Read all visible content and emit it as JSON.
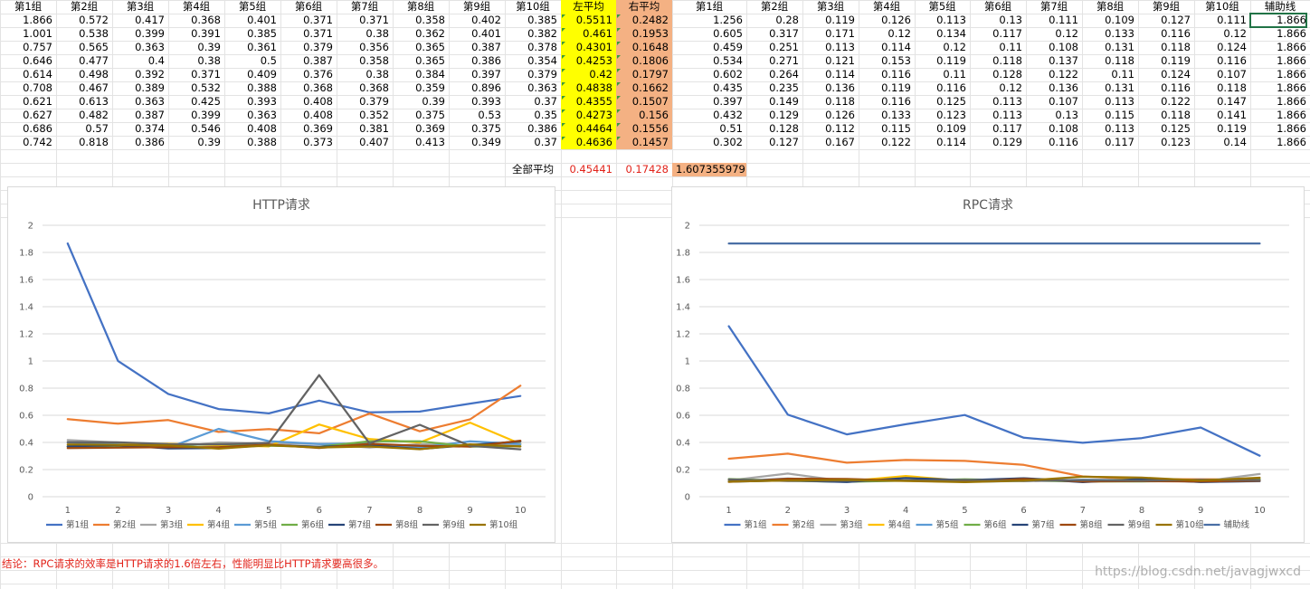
{
  "headers_left": [
    "第1组",
    "第2组",
    "第3组",
    "第4组",
    "第5组",
    "第6组",
    "第7组",
    "第8组",
    "第9组",
    "第10组",
    "左平均",
    "右平均"
  ],
  "headers_right": [
    "第1组",
    "第2组",
    "第3组",
    "第4组",
    "第5组",
    "第6组",
    "第7组",
    "第8组",
    "第9组",
    "第10组",
    "辅助线"
  ],
  "rows_left": [
    [
      "1.866",
      "0.572",
      "0.417",
      "0.368",
      "0.401",
      "0.371",
      "0.371",
      "0.358",
      "0.402",
      "0.385",
      "0.5511",
      "0.2482"
    ],
    [
      "1.001",
      "0.538",
      "0.399",
      "0.391",
      "0.385",
      "0.371",
      "0.38",
      "0.362",
      "0.401",
      "0.382",
      "0.461",
      "0.1953"
    ],
    [
      "0.757",
      "0.565",
      "0.363",
      "0.39",
      "0.361",
      "0.379",
      "0.356",
      "0.365",
      "0.387",
      "0.378",
      "0.4301",
      "0.1648"
    ],
    [
      "0.646",
      "0.477",
      "0.4",
      "0.38",
      "0.5",
      "0.387",
      "0.358",
      "0.365",
      "0.386",
      "0.354",
      "0.4253",
      "0.1806"
    ],
    [
      "0.614",
      "0.498",
      "0.392",
      "0.371",
      "0.409",
      "0.376",
      "0.38",
      "0.384",
      "0.397",
      "0.379",
      "0.42",
      "0.1797"
    ],
    [
      "0.708",
      "0.467",
      "0.389",
      "0.532",
      "0.388",
      "0.368",
      "0.368",
      "0.359",
      "0.896",
      "0.363",
      "0.4838",
      "0.1662"
    ],
    [
      "0.621",
      "0.613",
      "0.363",
      "0.425",
      "0.393",
      "0.408",
      "0.379",
      "0.39",
      "0.393",
      "0.37",
      "0.4355",
      "0.1507"
    ],
    [
      "0.627",
      "0.482",
      "0.387",
      "0.399",
      "0.363",
      "0.408",
      "0.352",
      "0.375",
      "0.53",
      "0.35",
      "0.4273",
      "0.156"
    ],
    [
      "0.686",
      "0.57",
      "0.374",
      "0.546",
      "0.408",
      "0.369",
      "0.381",
      "0.369",
      "0.375",
      "0.386",
      "0.4464",
      "0.1556"
    ],
    [
      "0.742",
      "0.818",
      "0.386",
      "0.39",
      "0.388",
      "0.373",
      "0.407",
      "0.413",
      "0.349",
      "0.37",
      "0.4636",
      "0.1457"
    ]
  ],
  "rows_right": [
    [
      "1.256",
      "0.28",
      "0.119",
      "0.126",
      "0.113",
      "0.13",
      "0.111",
      "0.109",
      "0.127",
      "0.111",
      "1.866"
    ],
    [
      "0.605",
      "0.317",
      "0.171",
      "0.12",
      "0.134",
      "0.117",
      "0.12",
      "0.133",
      "0.116",
      "0.12",
      "1.866"
    ],
    [
      "0.459",
      "0.251",
      "0.113",
      "0.114",
      "0.12",
      "0.11",
      "0.108",
      "0.131",
      "0.118",
      "0.124",
      "1.866"
    ],
    [
      "0.534",
      "0.271",
      "0.121",
      "0.153",
      "0.119",
      "0.118",
      "0.137",
      "0.118",
      "0.119",
      "0.116",
      "1.866"
    ],
    [
      "0.602",
      "0.264",
      "0.114",
      "0.116",
      "0.11",
      "0.128",
      "0.122",
      "0.11",
      "0.124",
      "0.107",
      "1.866"
    ],
    [
      "0.435",
      "0.235",
      "0.136",
      "0.119",
      "0.116",
      "0.12",
      "0.136",
      "0.131",
      "0.116",
      "0.118",
      "1.866"
    ],
    [
      "0.397",
      "0.149",
      "0.118",
      "0.116",
      "0.125",
      "0.113",
      "0.107",
      "0.113",
      "0.122",
      "0.147",
      "1.866"
    ],
    [
      "0.432",
      "0.129",
      "0.126",
      "0.133",
      "0.123",
      "0.113",
      "0.13",
      "0.115",
      "0.118",
      "0.141",
      "1.866"
    ],
    [
      "0.51",
      "0.128",
      "0.112",
      "0.115",
      "0.109",
      "0.117",
      "0.108",
      "0.113",
      "0.125",
      "0.119",
      "1.866"
    ],
    [
      "0.302",
      "0.127",
      "0.167",
      "0.122",
      "0.114",
      "0.129",
      "0.116",
      "0.117",
      "0.123",
      "0.14",
      "1.866"
    ]
  ],
  "summary": {
    "label": "全部平均",
    "left_avg": "0.45441",
    "right_avg": "0.17428",
    "ratio": "1.607355979"
  },
  "conclusion": "结论：RPC请求的效率是HTTP请求的1.6倍左右，性能明显比HTTP请求要高很多。",
  "watermark": "https://blog.csdn.net/javagjwxcd",
  "colors": {
    "highlight_yellow": "#ffff00",
    "highlight_orange": "#f4b183",
    "text_red": "#e2231a",
    "selection": "#217346"
  },
  "chart_data": [
    {
      "type": "line",
      "title": "HTTP请求",
      "x": [
        1,
        2,
        3,
        4,
        5,
        6,
        7,
        8,
        9,
        10
      ],
      "ylim": [
        0,
        2
      ],
      "yticks": [
        "0",
        "0.2",
        "0.4",
        "0.6",
        "0.8",
        "1",
        "1.2",
        "1.4",
        "1.6",
        "1.8",
        "2"
      ],
      "grid": true,
      "legend": "bottom",
      "series": [
        {
          "name": "第1组",
          "color": "#4472c4",
          "values": [
            1.866,
            1.001,
            0.757,
            0.646,
            0.614,
            0.708,
            0.621,
            0.627,
            0.686,
            0.742
          ]
        },
        {
          "name": "第2组",
          "color": "#ed7d31",
          "values": [
            0.572,
            0.538,
            0.565,
            0.477,
            0.498,
            0.467,
            0.613,
            0.482,
            0.57,
            0.818
          ]
        },
        {
          "name": "第3组",
          "color": "#a5a5a5",
          "values": [
            0.417,
            0.399,
            0.363,
            0.4,
            0.392,
            0.389,
            0.363,
            0.387,
            0.374,
            0.386
          ]
        },
        {
          "name": "第4组",
          "color": "#ffc000",
          "values": [
            0.368,
            0.391,
            0.39,
            0.38,
            0.371,
            0.532,
            0.425,
            0.399,
            0.546,
            0.39
          ]
        },
        {
          "name": "第5组",
          "color": "#5b9bd5",
          "values": [
            0.401,
            0.385,
            0.361,
            0.5,
            0.409,
            0.388,
            0.393,
            0.363,
            0.408,
            0.388
          ]
        },
        {
          "name": "第6组",
          "color": "#70ad47",
          "values": [
            0.371,
            0.371,
            0.379,
            0.387,
            0.376,
            0.368,
            0.408,
            0.408,
            0.369,
            0.373
          ]
        },
        {
          "name": "第7组",
          "color": "#264478",
          "values": [
            0.371,
            0.38,
            0.356,
            0.358,
            0.38,
            0.368,
            0.379,
            0.352,
            0.381,
            0.407
          ]
        },
        {
          "name": "第8组",
          "color": "#9e480e",
          "values": [
            0.358,
            0.362,
            0.365,
            0.365,
            0.384,
            0.359,
            0.39,
            0.375,
            0.369,
            0.413
          ]
        },
        {
          "name": "第9组",
          "color": "#636363",
          "values": [
            0.402,
            0.401,
            0.387,
            0.386,
            0.397,
            0.896,
            0.393,
            0.53,
            0.375,
            0.349
          ]
        },
        {
          "name": "第10组",
          "color": "#997300",
          "values": [
            0.385,
            0.382,
            0.378,
            0.354,
            0.379,
            0.363,
            0.37,
            0.35,
            0.386,
            0.37
          ]
        }
      ]
    },
    {
      "type": "line",
      "title": "RPC请求",
      "x": [
        1,
        2,
        3,
        4,
        5,
        6,
        7,
        8,
        9,
        10
      ],
      "ylim": [
        0,
        2
      ],
      "yticks": [
        "0",
        "0.2",
        "0.4",
        "0.6",
        "0.8",
        "1",
        "1.2",
        "1.4",
        "1.6",
        "1.8",
        "2"
      ],
      "grid": true,
      "legend": "bottom",
      "series": [
        {
          "name": "第1组",
          "color": "#4472c4",
          "values": [
            1.256,
            0.605,
            0.459,
            0.534,
            0.602,
            0.435,
            0.397,
            0.432,
            0.51,
            0.302
          ]
        },
        {
          "name": "第2组",
          "color": "#ed7d31",
          "values": [
            0.28,
            0.317,
            0.251,
            0.271,
            0.264,
            0.235,
            0.149,
            0.129,
            0.128,
            0.127
          ]
        },
        {
          "name": "第3组",
          "color": "#a5a5a5",
          "values": [
            0.119,
            0.171,
            0.113,
            0.121,
            0.114,
            0.136,
            0.118,
            0.126,
            0.112,
            0.167
          ]
        },
        {
          "name": "第4组",
          "color": "#ffc000",
          "values": [
            0.126,
            0.12,
            0.114,
            0.153,
            0.116,
            0.119,
            0.116,
            0.133,
            0.115,
            0.122
          ]
        },
        {
          "name": "第5组",
          "color": "#5b9bd5",
          "values": [
            0.113,
            0.134,
            0.12,
            0.119,
            0.11,
            0.116,
            0.125,
            0.123,
            0.109,
            0.114
          ]
        },
        {
          "name": "第6组",
          "color": "#70ad47",
          "values": [
            0.13,
            0.117,
            0.11,
            0.118,
            0.128,
            0.12,
            0.113,
            0.113,
            0.117,
            0.129
          ]
        },
        {
          "name": "第7组",
          "color": "#264478",
          "values": [
            0.111,
            0.12,
            0.108,
            0.137,
            0.122,
            0.136,
            0.107,
            0.13,
            0.108,
            0.116
          ]
        },
        {
          "name": "第8组",
          "color": "#9e480e",
          "values": [
            0.109,
            0.133,
            0.131,
            0.118,
            0.11,
            0.131,
            0.113,
            0.115,
            0.113,
            0.117
          ]
        },
        {
          "name": "第9组",
          "color": "#636363",
          "values": [
            0.127,
            0.116,
            0.118,
            0.119,
            0.124,
            0.116,
            0.122,
            0.118,
            0.125,
            0.123
          ]
        },
        {
          "name": "第10组",
          "color": "#997300",
          "values": [
            0.111,
            0.12,
            0.124,
            0.116,
            0.107,
            0.118,
            0.147,
            0.141,
            0.119,
            0.14
          ]
        },
        {
          "name": "辅助线",
          "color": "#4a6fa5",
          "values": [
            1.866,
            1.866,
            1.866,
            1.866,
            1.866,
            1.866,
            1.866,
            1.866,
            1.866,
            1.866
          ]
        }
      ]
    }
  ]
}
